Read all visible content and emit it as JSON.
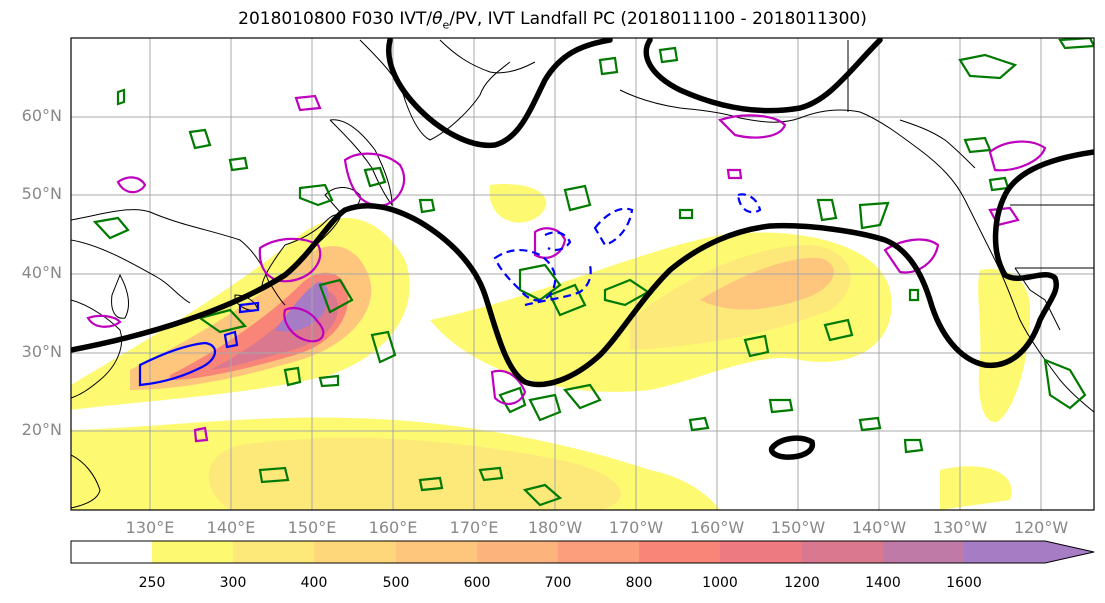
{
  "title": "2018010800 F030 IVT/θe/PV, IVT Landfall PC (2018011100 - 2018011300)",
  "title_parts": {
    "prefix": "2018010800 F030 IVT/",
    "theta": "θ",
    "sub": "e",
    "suffix": "/PV, IVT Landfall PC (2018011100 - 2018011300)"
  },
  "map": {
    "lat_labels": [
      "60°N",
      "50°N",
      "40°N",
      "30°N",
      "20°N"
    ],
    "lon_labels": [
      "130°E",
      "140°E",
      "150°E",
      "160°E",
      "170°E",
      "180°W",
      "170°W",
      "160°W",
      "150°W",
      "140°W",
      "130°W",
      "120°W"
    ]
  },
  "colorbar": {
    "ticks": [
      "250",
      "300",
      "400",
      "500",
      "600",
      "700",
      "800",
      "1000",
      "1200",
      "1400",
      "1600"
    ],
    "colors": [
      "#ffffff",
      "#fdfa72",
      "#fde87a",
      "#fdd77a",
      "#fdc67c",
      "#fdb47c",
      "#fc9e7c",
      "#f88577",
      "#ec7a80",
      "#d9788f",
      "#c07aa8",
      "#a67cc4"
    ]
  },
  "colors": {
    "pc_contour": "#000000",
    "theta_e": "#007a00",
    "pv_positive": "#bf00bf",
    "pv_negative": "#0000ff"
  }
}
